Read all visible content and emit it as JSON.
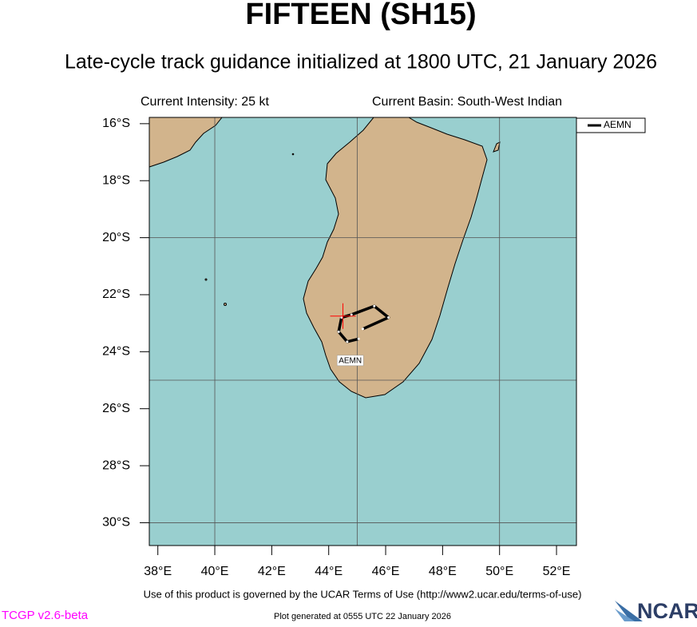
{
  "chart_data": {
    "type": "map",
    "title": "FIFTEEN (SH15)",
    "subtitle": "Late-cycle track guidance initialized at 1800 UTC, 21 January 2026",
    "intensity": "Current Intensity: 25 kt",
    "basin": "Current Basin: South-West Indian",
    "xlim": [
      37.7,
      52.7
    ],
    "ylim": [
      -30.8,
      -15.78
    ],
    "xticks": [
      {
        "value": 38,
        "label": "38°E"
      },
      {
        "value": 40,
        "label": "40°E"
      },
      {
        "value": 42,
        "label": "42°E"
      },
      {
        "value": 44,
        "label": "44°E"
      },
      {
        "value": 46,
        "label": "46°E"
      },
      {
        "value": 48,
        "label": "48°E"
      },
      {
        "value": 50,
        "label": "50°E"
      },
      {
        "value": 52,
        "label": "52°E"
      }
    ],
    "yticks": [
      {
        "value": -16,
        "label": "16°S"
      },
      {
        "value": -18,
        "label": "18°S"
      },
      {
        "value": -20,
        "label": "20°S"
      },
      {
        "value": -22,
        "label": "22°S"
      },
      {
        "value": -24,
        "label": "24°S"
      },
      {
        "value": -26,
        "label": "26°S"
      },
      {
        "value": -28,
        "label": "28°S"
      },
      {
        "value": -30,
        "label": "30°S"
      }
    ],
    "grid_x": [
      40,
      45,
      50
    ],
    "grid_y": [
      -20,
      -25,
      -30
    ],
    "current_position": {
      "lon": 44.5,
      "lat": -22.75,
      "color": "#ff0000"
    },
    "series": [
      {
        "name": "AEMN",
        "color": "#000000",
        "lon": [
          45.05,
          44.65,
          44.35,
          44.45,
          44.8,
          45.6,
          46.1,
          45.2
        ],
        "lat": [
          -23.55,
          -23.65,
          -23.3,
          -22.8,
          -22.7,
          -22.4,
          -22.8,
          -23.2
        ]
      }
    ],
    "footer": "Use of this product is governed by the UCAR Terms of Use (http://www2.ucar.edu/terms-of-use)",
    "version": "TCGP v2.6-beta",
    "generated": "Plot generated at 0555 UTC   22 January 2026",
    "logo": "NCAR"
  }
}
